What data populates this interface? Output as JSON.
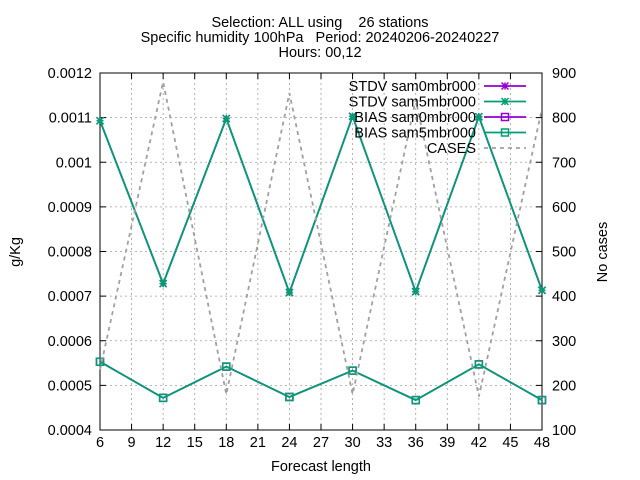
{
  "chart_data": {
    "type": "line",
    "title_lines": [
      "Selection: ALL using    26 stations",
      "Specific humidity 100hPa   Period: 20240206-20240227",
      "Hours: 00,12"
    ],
    "xlabel": "Forecast length",
    "ylabel": "g/Kg",
    "y2label": "No cases",
    "x": [
      6,
      12,
      18,
      24,
      30,
      36,
      42,
      48
    ],
    "xlim": [
      6,
      48
    ],
    "ylim": [
      0.0004,
      0.0012
    ],
    "y2lim": [
      100,
      900
    ],
    "x_ticks": [
      "6",
      "9",
      "12",
      "15",
      "18",
      "21",
      "24",
      "27",
      "30",
      "33",
      "36",
      "39",
      "42",
      "45",
      "48"
    ],
    "y_ticks": [
      "0.0004",
      "0.0005",
      "0.0006",
      "0.0007",
      "0.0008",
      "0.0009",
      "0.001",
      "0.0011",
      "0.0012"
    ],
    "y2_ticks": [
      "100",
      "200",
      "300",
      "400",
      "500",
      "600",
      "700",
      "800",
      "900"
    ],
    "grid": true,
    "legend_position": "top-right",
    "series": [
      {
        "name": "STDV sam0mbr000",
        "axis": "y",
        "color": "#9400d3",
        "style": "solid",
        "marker": "x",
        "values": [
          0.001093,
          0.000728,
          0.001098,
          0.000708,
          0.001103,
          0.00071,
          0.001102,
          0.000713
        ]
      },
      {
        "name": "STDV sam5mbr000",
        "axis": "y",
        "color": "#009e73",
        "style": "solid",
        "marker": "x",
        "values": [
          0.001093,
          0.000728,
          0.001098,
          0.000708,
          0.001103,
          0.00071,
          0.001102,
          0.000713
        ]
      },
      {
        "name": "BIAS sam0mbr000",
        "axis": "y",
        "color": "#9400d3",
        "style": "solid",
        "marker": "square",
        "values": [
          0.000553,
          0.000472,
          0.000542,
          0.000474,
          0.000533,
          0.000467,
          0.000547,
          0.000467
        ]
      },
      {
        "name": "BIAS sam5mbr000",
        "axis": "y",
        "color": "#009e73",
        "style": "solid",
        "marker": "square",
        "values": [
          0.000553,
          0.000472,
          0.000542,
          0.000474,
          0.000533,
          0.000467,
          0.000547,
          0.000467
        ]
      },
      {
        "name": "CASES",
        "axis": "y2",
        "color": "#a0a0a0",
        "style": "dashed",
        "marker": "none",
        "x": [
          6,
          12,
          18,
          24,
          30,
          36,
          42,
          48
        ],
        "values": [
          235,
          880,
          180,
          855,
          180,
          840,
          175,
          820
        ]
      }
    ]
  }
}
